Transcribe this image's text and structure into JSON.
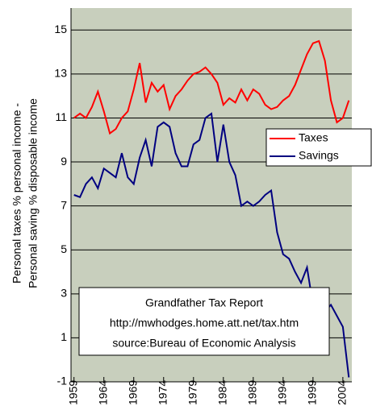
{
  "chart_data": {
    "type": "line",
    "ylabel": [
      "Personal taxes % personal income -",
      "Personal saving % disposable income"
    ],
    "annotation": [
      "Grandfather Tax Report",
      "http://mwhodges.home.att.net/tax.htm",
      "source:Bureau of Economic Analysis"
    ],
    "x": [
      1959,
      1960,
      1961,
      1962,
      1963,
      1964,
      1965,
      1966,
      1967,
      1968,
      1969,
      1970,
      1971,
      1972,
      1973,
      1974,
      1975,
      1976,
      1977,
      1978,
      1979,
      1980,
      1981,
      1982,
      1983,
      1984,
      1985,
      1986,
      1987,
      1988,
      1989,
      1990,
      1991,
      1992,
      1993,
      1994,
      1995,
      1996,
      1997,
      1998,
      1999,
      2000,
      2001,
      2002,
      2003,
      2004,
      2005
    ],
    "series": [
      {
        "name": "Taxes",
        "color": "#ff0000",
        "values": [
          11.0,
          11.2,
          11.0,
          11.5,
          12.2,
          11.3,
          10.3,
          10.5,
          11.0,
          11.3,
          12.3,
          13.5,
          11.7,
          12.6,
          12.2,
          12.5,
          11.4,
          12.0,
          12.3,
          12.7,
          13.0,
          13.1,
          13.3,
          13.0,
          12.6,
          11.6,
          11.9,
          11.7,
          12.3,
          11.8,
          12.3,
          12.1,
          11.6,
          11.4,
          11.5,
          11.8,
          12.0,
          12.5,
          13.2,
          13.9,
          14.4,
          14.5,
          13.6,
          11.8,
          10.8,
          11.0,
          11.8
        ]
      },
      {
        "name": "Savings",
        "color": "#000080",
        "values": [
          7.5,
          7.4,
          8.0,
          8.3,
          7.8,
          8.7,
          8.5,
          8.3,
          9.4,
          8.3,
          8.0,
          9.2,
          10.0,
          8.8,
          10.6,
          10.8,
          10.6,
          9.4,
          8.8,
          8.8,
          9.8,
          10.0,
          11.0,
          11.2,
          9.0,
          10.7,
          9.0,
          8.4,
          7.0,
          7.2,
          7.0,
          7.2,
          7.5,
          7.7,
          5.8,
          4.8,
          4.6,
          4.0,
          3.5,
          4.2,
          2.5,
          2.2,
          2.2,
          2.5,
          2.0,
          1.5,
          -0.8
        ]
      }
    ],
    "xlim": [
      1958.5,
      2005.5
    ],
    "xticks": [
      1959,
      1964,
      1969,
      1974,
      1979,
      1984,
      1989,
      1994,
      1999,
      2004
    ],
    "ylim": [
      -1,
      16
    ],
    "yticks": [
      -1,
      1,
      3,
      5,
      7,
      9,
      11,
      13,
      15
    ],
    "grid": true,
    "legend": "right"
  }
}
